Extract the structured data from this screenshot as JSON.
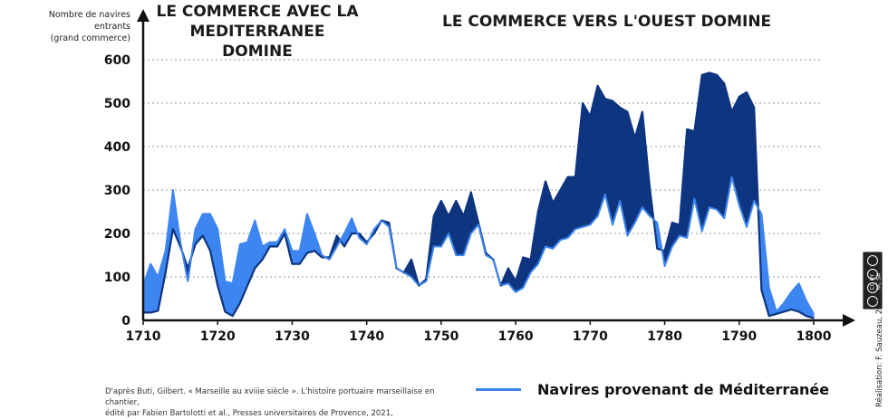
{
  "annotations": {
    "mediterranean": "LE COMMERCE AVEC LA MEDITERRANEE DOMINE",
    "west": "LE COMMERCE VERS L'OUEST  DOMINE"
  },
  "ylabel_line1": "Nombre de navires entrants",
  "ylabel_line2": "(grand commerce)",
  "source_line1": "D'après Buti, Gilbert. « Marseille au xviiie siècle ». L'histoire portuaire marseillaise en chantier,",
  "source_line2": "édité par Fabien Bartolotti et al., Presses universitaires de Provence, 2021,",
  "legend_label": "Navires provenant de Méditerranée",
  "credit": "Réalisation: F. Sauzeau, 2024",
  "license_badge": "CC BY NC SA",
  "colors": {
    "mediterranean": "#3d85f0",
    "total": "#0d3580",
    "grid": "#999999",
    "axis": "#111111"
  },
  "chart_data": {
    "type": "area",
    "xlim": [
      1710,
      1800
    ],
    "ylim": [
      0,
      600
    ],
    "x_ticks": [
      1710,
      1720,
      1730,
      1740,
      1750,
      1760,
      1770,
      1780,
      1790,
      1800
    ],
    "y_ticks": [
      0,
      100,
      200,
      300,
      400,
      500,
      600
    ],
    "grid": "horizontal dotted",
    "legend_position": "bottom",
    "series": [
      {
        "name": "Navires provenant de Méditerranée",
        "x": [
          1710,
          1711,
          1712,
          1713,
          1714,
          1715,
          1716,
          1717,
          1718,
          1719,
          1720,
          1721,
          1722,
          1723,
          1724,
          1725,
          1726,
          1727,
          1728,
          1729,
          1730,
          1731,
          1732,
          1733,
          1734,
          1735,
          1736,
          1737,
          1738,
          1739,
          1740,
          1741,
          1742,
          1743,
          1744,
          1745,
          1746,
          1747,
          1748,
          1749,
          1750,
          1751,
          1752,
          1753,
          1754,
          1755,
          1756,
          1757,
          1758,
          1759,
          1760,
          1761,
          1762,
          1763,
          1764,
          1765,
          1766,
          1767,
          1768,
          1769,
          1770,
          1771,
          1772,
          1773,
          1774,
          1775,
          1776,
          1777,
          1778,
          1779,
          1780,
          1781,
          1782,
          1783,
          1784,
          1785,
          1786,
          1787,
          1788,
          1789,
          1790,
          1791,
          1792,
          1793,
          1794,
          1795,
          1796,
          1797,
          1798,
          1799,
          1800
        ],
        "y": [
          80,
          130,
          100,
          160,
          300,
          180,
          90,
          210,
          245,
          245,
          210,
          90,
          85,
          175,
          180,
          230,
          170,
          180,
          180,
          210,
          160,
          160,
          245,
          200,
          150,
          140,
          170,
          200,
          235,
          190,
          175,
          210,
          230,
          215,
          120,
          110,
          100,
          80,
          90,
          170,
          170,
          200,
          150,
          150,
          200,
          220,
          150,
          140,
          80,
          85,
          65,
          75,
          110,
          130,
          170,
          165,
          185,
          190,
          210,
          215,
          220,
          240,
          290,
          220,
          275,
          195,
          225,
          260,
          240,
          225,
          125,
          170,
          195,
          190,
          280,
          205,
          260,
          255,
          235,
          330,
          265,
          215,
          275,
          245,
          75,
          20,
          40,
          65,
          85,
          45,
          15
        ],
        "color": "#3d85f0"
      },
      {
        "x": [
          1710,
          1711,
          1712,
          1713,
          1714,
          1715,
          1716,
          1717,
          1718,
          1719,
          1720,
          1721,
          1722,
          1723,
          1724,
          1725,
          1726,
          1727,
          1728,
          1729,
          1730,
          1731,
          1732,
          1733,
          1734,
          1735,
          1736,
          1737,
          1738,
          1739,
          1740,
          1741,
          1742,
          1743,
          1744,
          1745,
          1746,
          1747,
          1748,
          1749,
          1750,
          1751,
          1752,
          1753,
          1754,
          1755,
          1756,
          1757,
          1758,
          1759,
          1760,
          1761,
          1762,
          1763,
          1764,
          1765,
          1766,
          1767,
          1768,
          1769,
          1770,
          1771,
          1772,
          1773,
          1774,
          1775,
          1776,
          1777,
          1778,
          1779,
          1780,
          1781,
          1782,
          1783,
          1784,
          1785,
          1786,
          1787,
          1788,
          1789,
          1790,
          1791,
          1792,
          1793,
          1794,
          1795,
          1796,
          1797,
          1798,
          1799,
          1800
        ],
        "y": [
          18,
          18,
          22,
          110,
          210,
          170,
          120,
          175,
          195,
          160,
          80,
          20,
          10,
          40,
          80,
          120,
          140,
          170,
          170,
          200,
          130,
          130,
          155,
          160,
          145,
          145,
          195,
          170,
          200,
          200,
          180,
          200,
          230,
          225,
          120,
          110,
          140,
          80,
          95,
          240,
          275,
          240,
          275,
          240,
          295,
          225,
          155,
          140,
          80,
          120,
          90,
          145,
          140,
          250,
          320,
          270,
          300,
          330,
          330,
          500,
          470,
          540,
          510,
          505,
          490,
          480,
          420,
          480,
          305,
          165,
          160,
          225,
          220,
          440,
          435,
          565,
          570,
          565,
          545,
          480,
          515,
          525,
          490,
          70,
          10,
          15,
          20,
          25,
          20,
          10,
          5
        ],
        "color": "#0d3580"
      }
    ]
  }
}
